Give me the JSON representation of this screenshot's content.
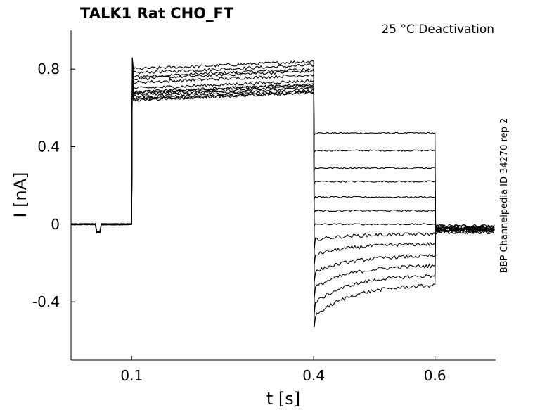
{
  "chart_data": {
    "type": "line",
    "title": "TALK1  Rat  CHO_FT",
    "annotation": "25 °C  Deactivation",
    "side_label": "BBP Channelpedia ID 34270 rep 2",
    "xlabel": "t [s]",
    "ylabel": "I [nA]",
    "xlim": [
      0.0,
      0.7
    ],
    "ylim": [
      -0.7,
      1.0
    ],
    "x_ticks": [
      0.1,
      0.4,
      0.6
    ],
    "x_tick_labels": [
      "0.1",
      "0.4",
      "0.6"
    ],
    "y_ticks": [
      -0.4,
      0,
      0.4,
      0.8
    ],
    "y_tick_labels": [
      "-0.4",
      "0",
      "0.4",
      "0.8"
    ],
    "grid": false,
    "line_color": "#000000",
    "protocol": {
      "pre_step_end_s": 0.1,
      "activation_end_s": 0.4,
      "deactivation_end_s": 0.6,
      "holding_current_nA": 0.0,
      "prepulse_artifact_nA": -0.04
    },
    "series": [
      {
        "activation_nA": 0.78,
        "deactivation_start_nA": 0.47,
        "deactivation_end_nA": 0.47,
        "tail_nA": -0.01
      },
      {
        "activation_nA": 0.8,
        "deactivation_start_nA": 0.38,
        "deactivation_end_nA": 0.38,
        "tail_nA": -0.02
      },
      {
        "activation_nA": 0.82,
        "deactivation_start_nA": 0.29,
        "deactivation_end_nA": 0.29,
        "tail_nA": -0.02
      },
      {
        "activation_nA": 0.77,
        "deactivation_start_nA": 0.22,
        "deactivation_end_nA": 0.22,
        "tail_nA": -0.01
      },
      {
        "activation_nA": 0.75,
        "deactivation_start_nA": 0.14,
        "deactivation_end_nA": 0.14,
        "tail_nA": -0.03
      },
      {
        "activation_nA": 0.72,
        "deactivation_start_nA": 0.07,
        "deactivation_end_nA": 0.07,
        "tail_nA": -0.02
      },
      {
        "activation_nA": 0.7,
        "deactivation_start_nA": 0.0,
        "deactivation_end_nA": 0.0,
        "tail_nA": -0.03
      },
      {
        "activation_nA": 0.68,
        "deactivation_start_nA": -0.08,
        "deactivation_end_nA": -0.05,
        "tail_nA": -0.02
      },
      {
        "activation_nA": 0.66,
        "deactivation_start_nA": -0.16,
        "deactivation_end_nA": -0.1,
        "tail_nA": -0.04
      },
      {
        "activation_nA": 0.7,
        "deactivation_start_nA": -0.25,
        "deactivation_end_nA": -0.16,
        "tail_nA": -0.03
      },
      {
        "activation_nA": 0.67,
        "deactivation_start_nA": -0.33,
        "deactivation_end_nA": -0.21,
        "tail_nA": -0.02
      },
      {
        "activation_nA": 0.69,
        "deactivation_start_nA": -0.41,
        "deactivation_end_nA": -0.26,
        "tail_nA": -0.04
      },
      {
        "activation_nA": 0.66,
        "deactivation_start_nA": -0.48,
        "deactivation_end_nA": -0.31,
        "tail_nA": -0.03
      }
    ]
  }
}
